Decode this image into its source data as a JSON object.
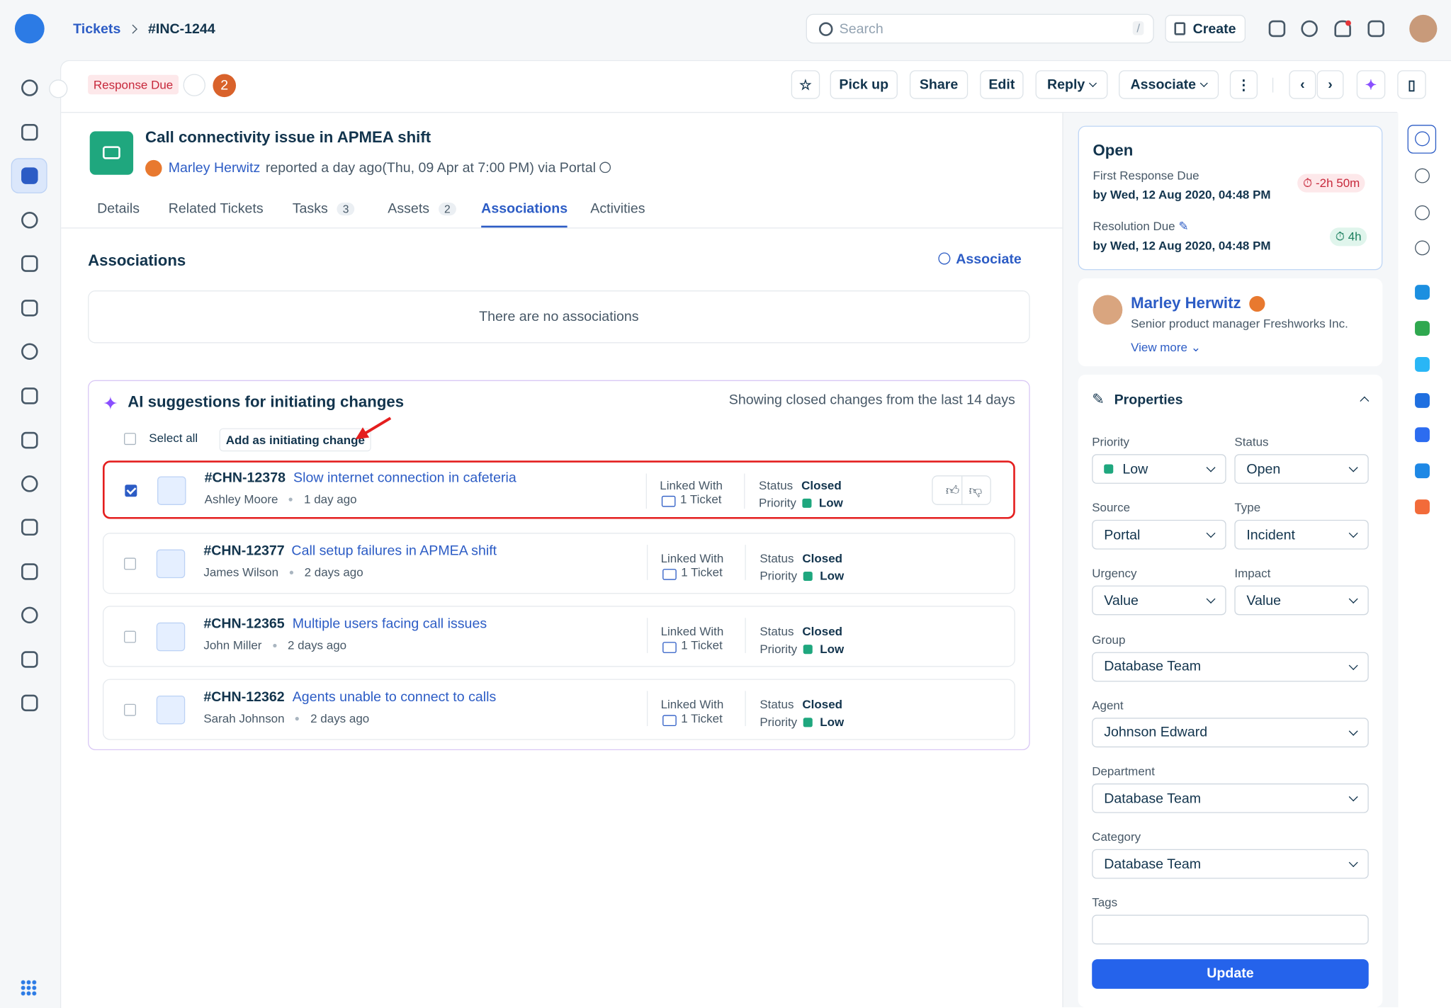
{
  "header": {
    "breadcrumb": [
      "Tickets",
      "#INC-1244"
    ],
    "search_placeholder": "Search",
    "search_shortcut": "/",
    "create": "Create"
  },
  "toolbar": {
    "badge": "Response Due",
    "watchers": 2,
    "buttons": [
      "Pick up",
      "Share",
      "Edit",
      "Reply",
      "Associate"
    ]
  },
  "ticket": {
    "title": "Call connectivity issue in APMEA shift",
    "requester": "Marley Herwitz",
    "reported": "reported a day ago(Thu, 09 Apr at 7:00 PM) via Portal"
  },
  "tabs": [
    {
      "label": "Details"
    },
    {
      "label": "Related Tickets"
    },
    {
      "label": "Tasks",
      "count": 3
    },
    {
      "label": "Assets",
      "count": 2
    },
    {
      "label": "Associations",
      "active": true
    },
    {
      "label": "Activities"
    }
  ],
  "associations": {
    "title": "Associations",
    "action": "Associate",
    "empty": "There are no associations"
  },
  "ai": {
    "title": "AI suggestions for initiating changes",
    "note": "Showing closed changes from the last 14 days",
    "select_all": "Select all",
    "add_button": "Add as initiating change",
    "items": [
      {
        "id": "#CHN-12378",
        "title": "Slow internet connection in cafeteria",
        "author": "Ashley Moore",
        "time": "1 day ago",
        "linked_label": "Linked With",
        "linked": "1 Ticket",
        "status_label": "Status",
        "status": "Closed",
        "priority_label": "Priority",
        "priority": "Low",
        "checked": true
      },
      {
        "id": "#CHN-12377",
        "title": "Call setup failures in APMEA shift",
        "author": "James Wilson",
        "time": "2 days ago",
        "linked_label": "Linked With",
        "linked": "1 Ticket",
        "status_label": "Status",
        "status": "Closed",
        "priority_label": "Priority",
        "priority": "Low",
        "checked": false
      },
      {
        "id": "#CHN-12365",
        "title": "Multiple users facing call issues",
        "author": "John Miller",
        "time": "2 days ago",
        "linked_label": "Linked With",
        "linked": "1 Ticket",
        "status_label": "Status",
        "status": "Closed",
        "priority_label": "Priority",
        "priority": "Low",
        "checked": false
      },
      {
        "id": "#CHN-12362",
        "title": "Agents unable to connect to calls",
        "author": "Sarah Johnson",
        "time": "2 days ago",
        "linked_label": "Linked With",
        "linked": "1 Ticket",
        "status_label": "Status",
        "status": "Closed",
        "priority_label": "Priority",
        "priority": "Low",
        "checked": false
      }
    ]
  },
  "sla": {
    "status": "Open",
    "first_response_label": "First Response Due",
    "first_response_date": "by Wed, 12 Aug 2020, 04:48 PM",
    "first_response_timer": "-2h 50m",
    "resolution_label": "Resolution Due",
    "resolution_date": "by Wed, 12 Aug 2020, 04:48 PM",
    "resolution_timer": "4h"
  },
  "contact": {
    "name": "Marley Herwitz",
    "role": "Senior product manager Freshworks Inc.",
    "view_more": "View more"
  },
  "properties": {
    "title": "Properties",
    "fields": [
      {
        "label": "Priority",
        "value": "Low"
      },
      {
        "label": "Status",
        "value": "Open"
      },
      {
        "label": "Source",
        "value": "Portal"
      },
      {
        "label": "Type",
        "value": "Incident"
      },
      {
        "label": "Urgency",
        "value": "Value"
      },
      {
        "label": "Impact",
        "value": "Value"
      },
      {
        "label": "Group",
        "value": "Database Team"
      },
      {
        "label": "Agent",
        "value": "Johnson Edward"
      },
      {
        "label": "Department",
        "value": "Database Team"
      },
      {
        "label": "Category",
        "value": "Database Team"
      }
    ],
    "tags_label": "Tags",
    "update": "Update"
  }
}
